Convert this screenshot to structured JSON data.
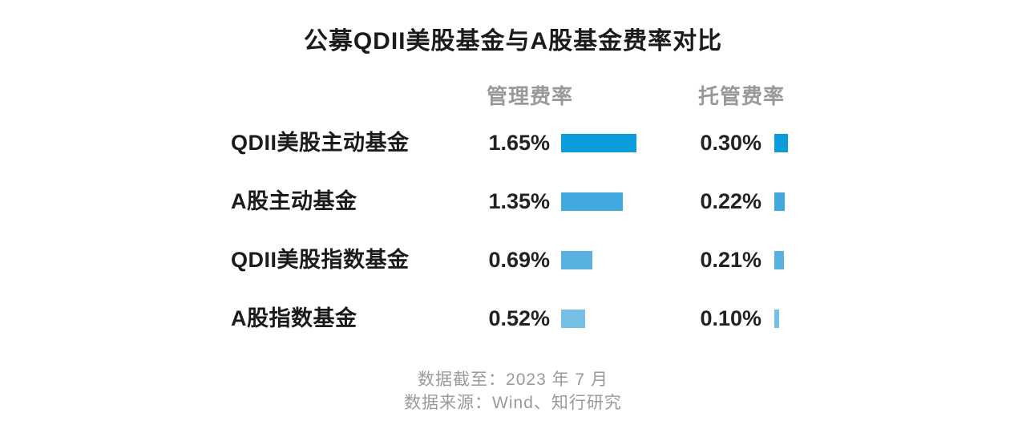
{
  "title": "公募QDII美股基金与A股基金费率对比",
  "columns": {
    "management": "管理费率",
    "custody": "托管费率"
  },
  "rows": [
    {
      "label": "QDII美股主动基金",
      "management_label": "1.65%",
      "management_value": 1.65,
      "custody_label": "0.30%",
      "custody_value": 0.3,
      "color": "#0a9dd9"
    },
    {
      "label": "A股主动基金",
      "management_label": "1.35%",
      "management_value": 1.35,
      "custody_label": "0.22%",
      "custody_value": 0.22,
      "color": "#41a9de"
    },
    {
      "label": "QDII美股指数基金",
      "management_label": "0.69%",
      "management_value": 0.69,
      "custody_label": "0.21%",
      "custody_value": 0.21,
      "color": "#58b1e1"
    },
    {
      "label": "A股指数基金",
      "management_label": "0.52%",
      "management_value": 0.52,
      "custody_label": "0.10%",
      "custody_value": 0.1,
      "color": "#76c0e8"
    }
  ],
  "footer": {
    "line1": "数据截至：2023 年 7 月",
    "line2": "数据来源：Wind、知行研究"
  },
  "chart_data": {
    "type": "bar",
    "orientation": "horizontal",
    "title": "公募QDII美股基金与A股基金费率对比",
    "categories": [
      "QDII美股主动基金",
      "A股主动基金",
      "QDII美股指数基金",
      "A股指数基金"
    ],
    "series": [
      {
        "name": "管理费率",
        "values": [
          1.65,
          1.35,
          0.69,
          0.52
        ],
        "unit": "%"
      },
      {
        "name": "托管费率",
        "values": [
          0.3,
          0.22,
          0.21,
          0.1
        ],
        "unit": "%"
      }
    ],
    "bar_colors": [
      "#0a9dd9",
      "#41a9de",
      "#58b1e1",
      "#76c0e8"
    ],
    "data_labels": true,
    "grid": false,
    "axes_visible": false,
    "notes": [
      "数据截至：2023 年 7 月",
      "数据来源：Wind、知行研究"
    ]
  }
}
